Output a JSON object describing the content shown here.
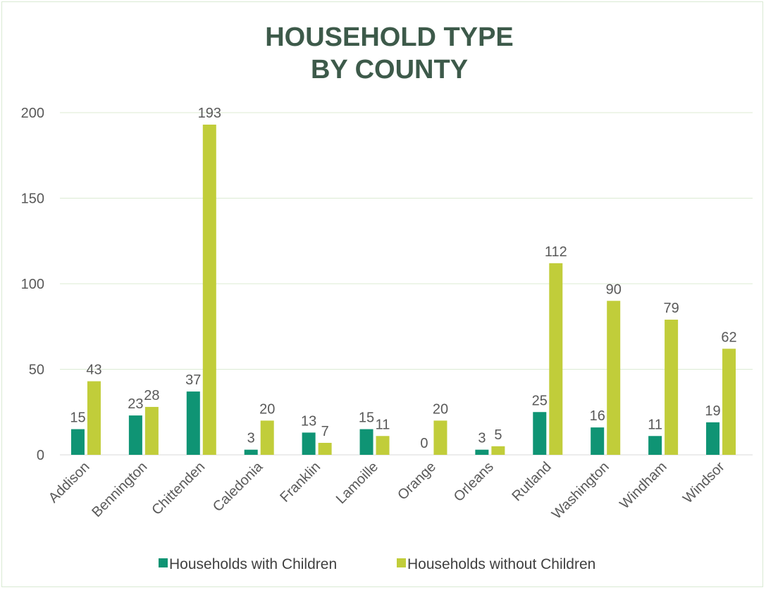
{
  "chart_data": {
    "type": "bar",
    "title_line1": "HOUSEHOLD  TYPE",
    "title_line2": "BY COUNTY",
    "xlabel": "",
    "ylabel": "",
    "ylim": [
      0,
      200
    ],
    "yticks": [
      "0",
      "50",
      "100",
      "150",
      "200"
    ],
    "grid": true,
    "legend_position": "bottom",
    "categories": [
      "Addison",
      "Bennington",
      "Chittenden",
      "Caledonia",
      "Franklin",
      "Lamoille",
      "Orange",
      "Orleans",
      "Rutland",
      "Washington",
      "Windham",
      "Windsor"
    ],
    "series": [
      {
        "name": "Households with Children",
        "color": "#0f9474",
        "values": [
          15,
          23,
          37,
          3,
          13,
          15,
          0,
          3,
          25,
          16,
          11,
          19
        ]
      },
      {
        "name": "Households without Children",
        "color": "#c1cd3a",
        "values": [
          43,
          28,
          193,
          20,
          7,
          11,
          20,
          5,
          112,
          90,
          79,
          62
        ]
      }
    ]
  }
}
